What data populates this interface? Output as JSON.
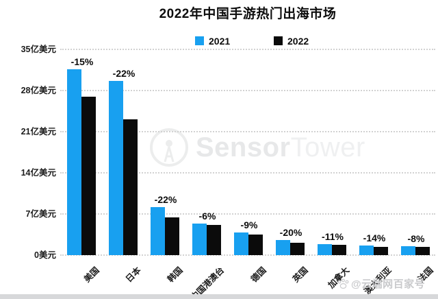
{
  "title": "2022年中国手游热门出海市场",
  "legend": [
    {
      "label": "2021",
      "color": "#18a0f0"
    },
    {
      "label": "2022",
      "color": "#0b0b0b"
    }
  ],
  "watermark": {
    "sensor": "Sensor",
    "tower": "Tower"
  },
  "credit": {
    "text": "@云端网百家号"
  },
  "chart_data": {
    "type": "bar",
    "title": "2022年中国手游热门出海市场",
    "unit": "亿美元",
    "categories": [
      "美国",
      "日本",
      "韩国",
      "中国港澳台",
      "德国",
      "英国",
      "加拿大",
      "澳大利亚",
      "法国"
    ],
    "series": [
      {
        "name": "2021",
        "color": "#18a0f0",
        "values": [
          31.6,
          29.6,
          8.2,
          5.4,
          3.9,
          2.6,
          1.9,
          1.6,
          1.5
        ]
      },
      {
        "name": "2022",
        "color": "#0b0b0b",
        "values": [
          26.9,
          23.1,
          6.4,
          5.1,
          3.5,
          2.1,
          1.7,
          1.4,
          1.4
        ]
      }
    ],
    "change_labels": [
      "-15%",
      "-22%",
      "-22%",
      "-6%",
      "-9%",
      "-20%",
      "-11%",
      "-14%",
      "-8%"
    ],
    "yticks": [
      {
        "value": 35,
        "label": "35亿美元"
      },
      {
        "value": 28,
        "label": "28亿美元"
      },
      {
        "value": 21,
        "label": "21亿美元"
      },
      {
        "value": 14,
        "label": "14亿美元"
      },
      {
        "value": 7,
        "label": "7亿美元"
      },
      {
        "value": 0,
        "label": "0美元"
      }
    ],
    "ylim": [
      0,
      35
    ],
    "grid": "horizontal-dotted",
    "legend_position": "top-center"
  }
}
